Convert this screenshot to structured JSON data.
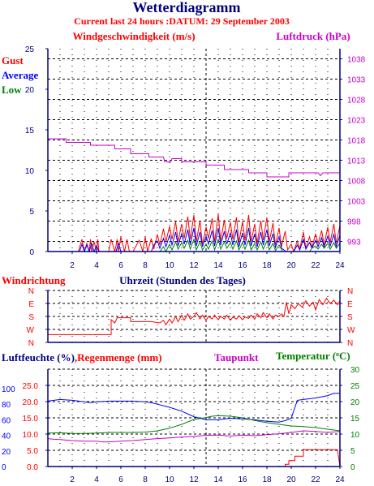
{
  "title": "Wetterdiagramm",
  "subtitle": "Current last 24 hours :DATUM: 29 September 2003",
  "colors": {
    "axis": "#000080",
    "red": "#ff0000",
    "blue": "#0000ff",
    "green": "#008000",
    "magenta": "#cc00cc",
    "navy": "#000080"
  },
  "chart_data": [
    {
      "type": "line",
      "name": "wind",
      "title": "Windgeschwindigkeit (m/s)",
      "ylabel_right": "Luftdruck (hPa)",
      "legend": [
        "Gust",
        "Average",
        "Low"
      ],
      "xlim": [
        0,
        24
      ],
      "xticks": [
        2,
        4,
        6,
        8,
        10,
        12,
        14,
        16,
        18,
        20,
        22,
        24
      ],
      "ylim": [
        0,
        25
      ],
      "yticks": [
        0,
        5,
        10,
        15,
        20,
        25
      ],
      "ylim_right": [
        990.5,
        1040.5
      ],
      "yticks_right": [
        993,
        998,
        1003,
        1008,
        1013,
        1018,
        1023,
        1028,
        1033,
        1038
      ],
      "grid": true,
      "series": [
        {
          "name": "Luftdruck",
          "axis": "right",
          "color": "#cc00cc",
          "x": [
            0,
            1.5,
            1.5,
            3.5,
            3.5,
            5.5,
            5.5,
            6.8,
            6.8,
            8.3,
            8.3,
            9.5,
            9.6,
            10.1,
            10.2,
            11,
            11,
            13,
            13,
            14.5,
            14.5,
            16.5,
            16.5,
            18,
            18,
            19.8,
            19.8,
            22.2,
            22.4,
            22.6,
            24
          ],
          "y": [
            1018.3,
            1018.3,
            1017.4,
            1017.4,
            1016.7,
            1016.7,
            1015.8,
            1015.8,
            1014.6,
            1014.6,
            1013.8,
            1013.8,
            1012.6,
            1012.6,
            1013.4,
            1013.4,
            1012.6,
            1012.6,
            1011.8,
            1011.8,
            1010.7,
            1010.7,
            1009.9,
            1009.9,
            1008.9,
            1008.9,
            1009.9,
            1009.9,
            1009.2,
            1009.9,
            1009.9
          ]
        },
        {
          "name": "Gust",
          "axis": "left",
          "color": "#ff0000",
          "x": [
            0,
            2.5,
            2.8,
            3,
            3.2,
            3.4,
            3.5,
            3.6,
            3.8,
            4,
            4.1,
            4.2,
            5,
            5.2,
            5.5,
            5.7,
            5.8,
            6,
            6.3,
            6.5,
            6.7,
            7,
            7.5,
            7.8,
            8,
            8.2,
            8.5,
            8.7,
            9,
            9.2,
            9.5,
            9.7,
            10,
            10.2,
            10.5,
            10.7,
            11,
            11.2,
            11.5,
            11.7,
            12,
            12.2,
            12.5,
            12.7,
            13,
            13.2,
            13.5,
            13.7,
            14,
            14.2,
            14.5,
            14.7,
            15,
            15.2,
            15.5,
            15.7,
            16,
            16.2,
            16.5,
            16.7,
            17,
            17.2,
            17.5,
            17.7,
            18,
            18.2,
            18.5,
            18.7,
            19,
            19.2,
            19.5,
            19.7,
            20,
            20.2,
            20.5,
            20.7,
            21,
            21.2,
            21.5,
            21.7,
            22,
            22.2,
            22.5,
            22.7,
            23,
            23.2,
            23.5,
            23.7,
            24
          ],
          "y": [
            0,
            0,
            1.5,
            0,
            1,
            0,
            1.5,
            0,
            1.2,
            0,
            1.5,
            0,
            0,
            1.5,
            0,
            1.5,
            0,
            1.8,
            0,
            1.5,
            0,
            0,
            1.4,
            0,
            1.8,
            0,
            1.6,
            0.3,
            2.1,
            0.8,
            2.8,
            1.2,
            3.1,
            1.5,
            3.7,
            1.2,
            3.4,
            1.6,
            4.3,
            1.5,
            4.5,
            1.2,
            3.8,
            0.9,
            3,
            1.6,
            4.1,
            1.2,
            4.6,
            1.3,
            3.9,
            1.6,
            3.6,
            1.5,
            4.2,
            1.1,
            3.7,
            1.4,
            4.5,
            1.2,
            3.4,
            1,
            3.8,
            1.4,
            4.2,
            1.2,
            3.5,
            0.8,
            2.9,
            0.6,
            2.5,
            0.2,
            0.9,
            0,
            1.3,
            0.3,
            2.4,
            0.4,
            1.8,
            0.5,
            2.2,
            1,
            2.6,
            0.8,
            3,
            1.1,
            3.4,
            1,
            3.2
          ]
        },
        {
          "name": "Average",
          "axis": "left",
          "color": "#0000ff",
          "x": [
            0,
            2.6,
            2.8,
            3,
            3.2,
            3.4,
            3.6,
            3.8,
            4,
            4.2,
            5.6,
            5.8,
            6,
            6.2,
            8.5,
            8.7,
            9,
            9.2,
            9.5,
            9.7,
            10,
            10.2,
            10.5,
            10.7,
            11,
            11.2,
            11.5,
            11.7,
            12,
            12.2,
            12.5,
            12.7,
            13,
            13.2,
            13.5,
            13.7,
            14,
            14.2,
            14.5,
            14.7,
            15,
            15.2,
            15.5,
            15.7,
            16,
            16.2,
            16.5,
            16.7,
            17,
            17.2,
            17.5,
            17.7,
            18,
            18.2,
            18.5,
            18.7,
            19,
            19.2,
            19.6,
            20.2,
            20.5,
            20.7,
            21,
            21.2,
            21.5,
            21.7,
            22,
            22.2,
            22.5,
            22.7,
            23,
            23.2,
            23.5,
            23.7,
            24
          ],
          "y": [
            0,
            0,
            0.9,
            0,
            0.8,
            0,
            1,
            0,
            0.7,
            0,
            0,
            1,
            0,
            0,
            0,
            0.8,
            1.3,
            0.4,
            1.6,
            0.6,
            2,
            0.8,
            2.4,
            0.7,
            2.2,
            0.9,
            2.7,
            0.8,
            2.9,
            0.7,
            2.4,
            0.6,
            1.9,
            0.9,
            2.6,
            0.7,
            2.9,
            0.8,
            2.5,
            0.9,
            2.3,
            0.8,
            2.7,
            0.6,
            2.3,
            0.8,
            2.9,
            0.7,
            2.2,
            0.6,
            2.4,
            0.8,
            2.7,
            0.7,
            2.2,
            0.5,
            1.8,
            0.4,
            0,
            0,
            0.8,
            0.2,
            1.5,
            0.3,
            1.1,
            0.4,
            1.4,
            0.6,
            1.7,
            0.5,
            1.9,
            0.7,
            2.1,
            0.6,
            2
          ]
        },
        {
          "name": "Low",
          "axis": "left",
          "color": "#008000",
          "x": [
            0,
            9.2,
            9.5,
            9.7,
            10,
            10.2,
            10.5,
            10.7,
            11,
            11.2,
            11.5,
            11.7,
            12,
            12.2,
            12.5,
            12.7,
            13,
            13.2,
            13.5,
            13.7,
            14,
            14.2,
            14.5,
            14.7,
            15,
            15.2,
            15.5,
            15.7,
            16,
            16.2,
            16.5,
            16.7,
            17,
            17.2,
            17.5,
            17.7,
            18,
            18.2,
            18.5,
            18.7,
            19,
            19.3,
            21.5,
            21.7,
            22,
            22.2,
            22.5,
            22.7,
            23,
            23.2,
            23.5,
            23.7,
            24
          ],
          "y": [
            0,
            0,
            0.6,
            0,
            0.9,
            0.2,
            1.2,
            0.3,
            1.1,
            0.4,
            1.4,
            0.3,
            1.5,
            0.2,
            1.2,
            0.2,
            0.9,
            0.3,
            1.3,
            0.2,
            1.5,
            0.3,
            1.2,
            0.4,
            1.1,
            0.3,
            1.3,
            0.2,
            1.1,
            0.3,
            1.4,
            0.2,
            1,
            0.2,
            1.2,
            0.3,
            1.3,
            0.2,
            1,
            0.1,
            0.8,
            0,
            0,
            0.4,
            0.7,
            0.3,
            0.9,
            0.4,
            1,
            0.3,
            1.1,
            0.4,
            1
          ]
        }
      ]
    },
    {
      "type": "line",
      "name": "direction",
      "title": "Windrichtung",
      "xlabel": "Uhrzeit (Stunden des Tages)",
      "xlim": [
        0,
        24
      ],
      "yticks": [
        "N",
        "W",
        "S",
        "E",
        "N"
      ],
      "grid": true,
      "series": [
        {
          "name": "Windrichtung",
          "color": "#ff0000",
          "x": [
            0,
            5.2,
            5.2,
            5.5,
            5.7,
            6.8,
            6.8,
            8.5,
            9.2,
            9.5,
            9.7,
            10,
            10.2,
            10.5,
            10.7,
            11,
            11.2,
            11.5,
            11.7,
            12,
            12.2,
            12.5,
            12.7,
            13,
            13.2,
            13.5,
            13.7,
            14,
            14.2,
            14.5,
            14.7,
            15,
            15.2,
            15.5,
            15.7,
            16,
            16.2,
            16.5,
            16.7,
            17,
            17.2,
            17.5,
            17.7,
            18,
            18.2,
            18.5,
            18.7,
            19,
            19.2,
            19.4,
            19.6,
            19.8,
            20,
            20.3,
            20.6,
            20.9,
            21.2,
            21.5,
            21.8,
            22,
            22.3,
            22.6,
            22.9,
            23.2,
            23.5,
            23.8,
            24
          ],
          "y": [
            0.6,
            0.6,
            1.75,
            1.5,
            1.9,
            1.9,
            1.6,
            1.6,
            1.5,
            1.7,
            1.35,
            1.8,
            1.5,
            2,
            1.6,
            2.1,
            1.7,
            2.2,
            1.8,
            2,
            2.3,
            1.8,
            2.1,
            1.7,
            2,
            1.8,
            2.1,
            1.75,
            2,
            1.8,
            2.1,
            1.7,
            1.95,
            1.8,
            2.05,
            1.75,
            1.95,
            1.85,
            2.1,
            1.8,
            2.2,
            1.9,
            2.3,
            1.9,
            2.2,
            1.8,
            2.1,
            2,
            2.2,
            2,
            3.1,
            2.2,
            2.9,
            2.6,
            3,
            2.7,
            3.2,
            2.8,
            3.1,
            2.5,
            3.3,
            2.9,
            3.4,
            3,
            3.25,
            2.9,
            3.2
          ]
        }
      ]
    },
    {
      "type": "line",
      "name": "humidity",
      "title_left": "Luftfeuchte (%)",
      "title_rain": "Regenmenge (mm)",
      "title_dew": "Taupunkt",
      "title_temp": "Temperatur (",
      "title_temp_unit": "C)",
      "xlim": [
        0,
        24
      ],
      "xticks": [
        2,
        4,
        6,
        8,
        10,
        12,
        14,
        16,
        18,
        20,
        22,
        24
      ],
      "yticks_humidity": [
        0,
        20,
        40,
        60,
        80,
        100
      ],
      "yticks_rain": [
        "0.0",
        "5.0",
        "10.0",
        "15.0",
        "20.0",
        "25.0"
      ],
      "yticks_temp": [
        0,
        5,
        10,
        15,
        20,
        25,
        30
      ],
      "grid": true,
      "series": [
        {
          "name": "Luftfeuchte",
          "color": "#0000ff",
          "x": [
            0,
            0.5,
            1,
            2,
            3,
            3.5,
            4,
            5,
            6,
            7,
            8,
            8.5,
            9,
            10,
            11,
            12,
            12.5,
            13,
            14,
            15,
            16,
            17,
            18,
            19,
            19.5,
            20,
            20.5,
            21,
            22,
            23,
            23.5,
            24
          ],
          "y": [
            84,
            85,
            86,
            85,
            83,
            82,
            83,
            84,
            84,
            84,
            83,
            82,
            80,
            76,
            71,
            64,
            62,
            60,
            60,
            62,
            61,
            60,
            58,
            57,
            59,
            62,
            85,
            86,
            88,
            91,
            94,
            94
          ]
        },
        {
          "name": "Temperatur",
          "color": "#008000",
          "x": [
            0,
            1,
            2,
            3,
            4,
            5,
            6,
            7,
            8,
            9,
            10,
            11,
            12,
            13,
            13.5,
            14,
            15,
            16,
            17,
            18,
            19,
            20,
            21,
            22,
            23,
            24
          ],
          "y": [
            10.3,
            10.4,
            10.2,
            10.2,
            10.3,
            10.5,
            10.5,
            10.5,
            10.6,
            11,
            11.8,
            13,
            14.5,
            15.1,
            15.5,
            15.7,
            15.5,
            15,
            14.2,
            13.5,
            13,
            12.5,
            12.3,
            12,
            11.5,
            11
          ]
        },
        {
          "name": "Taupunkt",
          "color": "#cc00cc",
          "x": [
            0,
            0.5,
            1,
            2,
            3,
            4,
            4.5,
            5,
            6,
            7,
            8,
            9,
            10,
            11,
            12,
            13,
            14,
            15,
            16,
            17,
            18,
            19,
            20,
            21,
            22,
            23,
            24
          ],
          "y": [
            8.6,
            8.4,
            8.3,
            8,
            7.8,
            7.8,
            7.6,
            7.6,
            7.8,
            8,
            8.3,
            8.6,
            8.8,
            9.1,
            9.3,
            9.6,
            9.7,
            9.4,
            9.7,
            9.5,
            9.8,
            10.1,
            10.5,
            11,
            10.8,
            10.5,
            10.8
          ]
        },
        {
          "name": "Regenmenge",
          "color": "#ff0000",
          "x": [
            0,
            18.8,
            19,
            19.5,
            19.5,
            19.8,
            19.8,
            20.3,
            20.3,
            21,
            21,
            23.8,
            24
          ],
          "y": [
            0,
            0,
            0,
            0,
            0.7,
            0.7,
            1.8,
            1.8,
            3.2,
            3.2,
            5.2,
            5.2,
            0
          ]
        }
      ]
    }
  ]
}
